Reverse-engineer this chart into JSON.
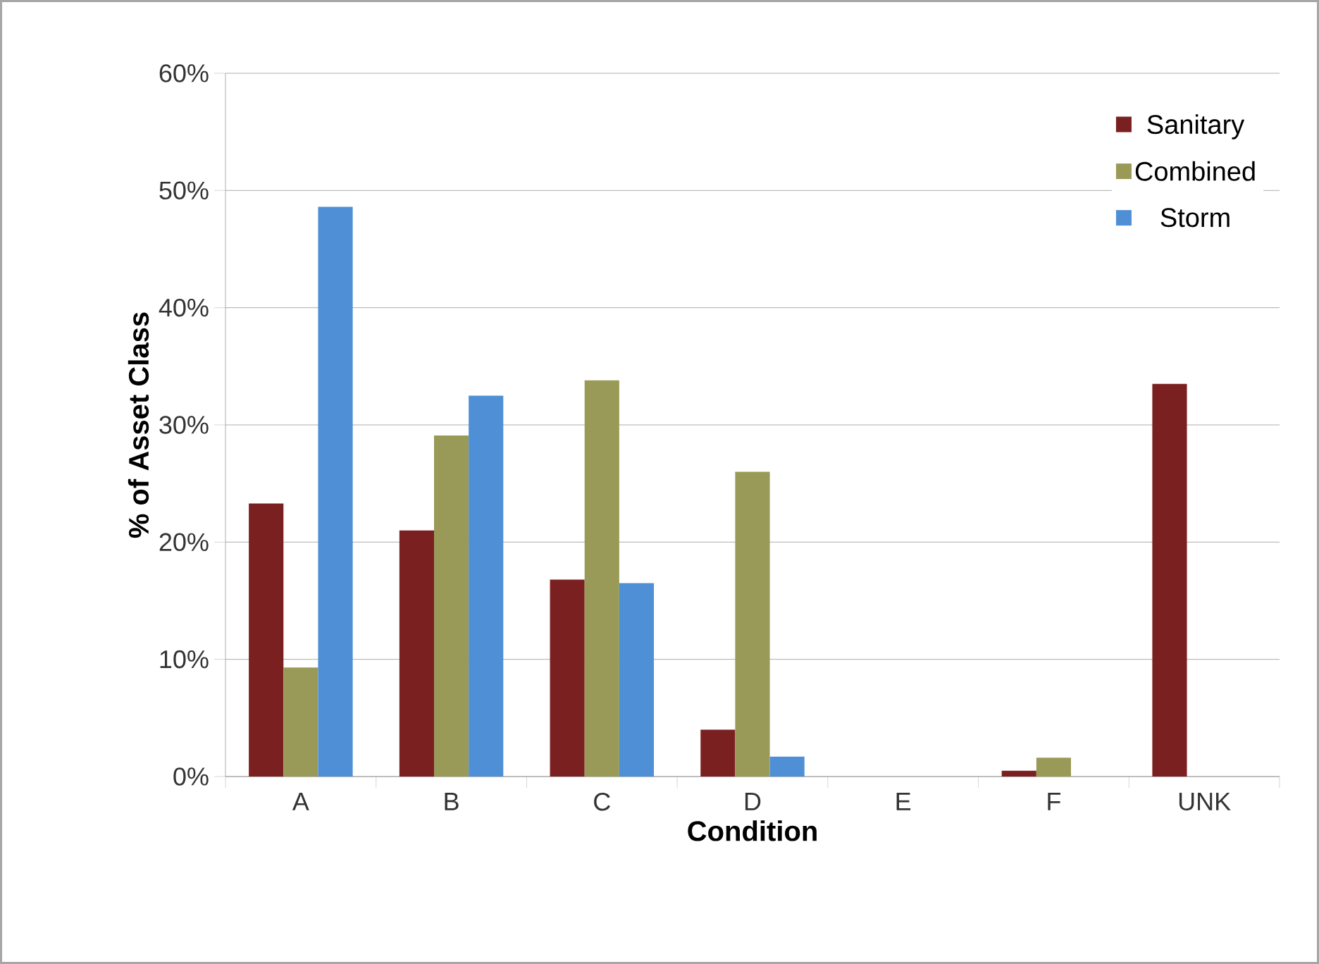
{
  "chart_data": {
    "type": "bar",
    "xlabel": "Condition",
    "ylabel": "% of Asset Class",
    "categories": [
      "A",
      "B",
      "C",
      "D",
      "E",
      "F",
      "UNK"
    ],
    "series": [
      {
        "name": "Sanitary",
        "color": "#7b2020",
        "values": [
          23.3,
          21.0,
          16.8,
          4.0,
          0,
          0.5,
          33.5
        ]
      },
      {
        "name": "Combined",
        "color": "#9a9a58",
        "values": [
          9.3,
          29.1,
          33.8,
          26.0,
          0,
          1.6,
          0
        ]
      },
      {
        "name": "Storm",
        "color": "#4f8fd6",
        "values": [
          48.6,
          32.5,
          16.5,
          1.7,
          0,
          0,
          0
        ]
      }
    ],
    "ylim": [
      0,
      60
    ],
    "yticks": [
      {
        "value": 0,
        "label": "0%"
      },
      {
        "value": 10,
        "label": "10%"
      },
      {
        "value": 20,
        "label": "20%"
      },
      {
        "value": 30,
        "label": "30%"
      },
      {
        "value": 40,
        "label": "40%"
      },
      {
        "value": 50,
        "label": "50%"
      },
      {
        "value": 60,
        "label": "60%"
      }
    ],
    "grid": "y",
    "legend": "top right"
  }
}
